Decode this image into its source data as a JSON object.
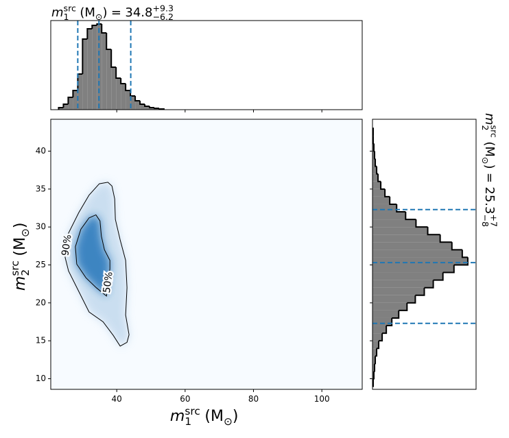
{
  "chart_data": [
    {
      "type": "histogram",
      "orientation": "vertical",
      "title": {
        "symbol": "m",
        "sup": "src",
        "sub": "1",
        "unit_open": "(M",
        "unit_sub": "⊙",
        "unit_close": ")",
        "equals": "=",
        "value": 34.8,
        "plus": {
          "value": 9.3,
          "label": "+9.3"
        },
        "minus": {
          "value": -6.2,
          "label": "−6.2"
        }
      },
      "bins": [
        23.0,
        24.4,
        25.8,
        27.2,
        28.6,
        30.0,
        31.4,
        32.8,
        34.2,
        35.6,
        37.0,
        38.4,
        39.8,
        41.2,
        42.6,
        44.0,
        45.4,
        46.8,
        48.2,
        49.6,
        51.0,
        52.4,
        53.8
      ],
      "counts": [
        3,
        8,
        18,
        28,
        52,
        103,
        118,
        123,
        125,
        112,
        88,
        62,
        46,
        38,
        28,
        20,
        13,
        8,
        5,
        3,
        2,
        1
      ],
      "color": "#808080",
      "edge_color": "#000000",
      "xlim": [
        20.7,
        111.8
      ],
      "ylim": [
        0,
        130
      ],
      "xticks": [
        40,
        60,
        80,
        100
      ],
      "quantiles": [
        28.6,
        34.8,
        44.1
      ],
      "quantile_color": "#1f77b4"
    },
    {
      "type": "contour",
      "xlabel": {
        "symbol": "m",
        "sup": "src",
        "sub": "1",
        "unit_open": "(M",
        "unit_sub": "⊙",
        "unit_close": ")"
      },
      "ylabel": {
        "symbol": "m",
        "sup": "src",
        "sub": "2",
        "unit_open": "(M",
        "unit_sub": "⊙",
        "unit_close": ")"
      },
      "xlim": [
        20.7,
        111.8
      ],
      "ylim": [
        8.6,
        44.2
      ],
      "xticks": [
        40,
        60,
        80,
        100
      ],
      "yticks": [
        10,
        15,
        20,
        25,
        30,
        35,
        40
      ],
      "background": "#f7fbff",
      "contours": [
        {
          "label": "90%",
          "fill": "#c6dbef",
          "x": [
            37.4,
            38.6,
            39.4,
            39.6,
            41.0,
            42.6,
            43.0,
            42.6,
            43.6,
            43.0,
            41.0,
            39.0,
            36.0,
            31.9,
            28.9,
            25.9,
            24.9,
            25.9,
            28.9,
            31.9,
            34.9
          ],
          "y": [
            35.9,
            35.4,
            33.7,
            31.0,
            28.3,
            25.6,
            22.0,
            18.4,
            15.8,
            14.8,
            14.3,
            15.7,
            17.5,
            18.8,
            21.5,
            24.2,
            26.0,
            29.2,
            31.9,
            34.2,
            35.7
          ]
        },
        {
          "label": "50%",
          "fill": "#2f7bbd",
          "x": [
            33.9,
            35.1,
            35.5,
            36.4,
            38.0,
            38.0,
            37.0,
            34.0,
            31.0,
            28.3,
            27.9,
            29.5,
            31.9
          ],
          "y": [
            31.6,
            30.8,
            28.8,
            27.0,
            25.6,
            24.5,
            20.9,
            22.0,
            23.3,
            25.1,
            27.4,
            29.7,
            31.2
          ]
        }
      ]
    },
    {
      "type": "histogram",
      "orientation": "horizontal",
      "title": {
        "symbol": "m",
        "sup": "src",
        "sub": "2",
        "unit_open": "(M",
        "unit_sub": "⊙",
        "unit_close": ")",
        "equals": "=",
        "value": 25.3,
        "plus": {
          "value": 7,
          "label": "+7"
        },
        "minus": {
          "value": -8,
          "label": "−8"
        }
      },
      "bins": [
        9,
        10,
        11,
        12,
        13,
        14,
        15,
        16,
        17,
        18,
        19,
        20,
        21,
        22,
        23,
        24,
        25,
        26,
        27,
        28,
        29,
        30,
        31,
        32,
        33,
        34,
        35,
        36,
        37,
        38,
        39,
        40,
        41,
        42,
        43
      ],
      "counts": [
        1,
        2,
        3,
        4,
        6,
        9,
        14,
        20,
        28,
        38,
        50,
        62,
        75,
        88,
        102,
        118,
        138,
        130,
        115,
        98,
        80,
        63,
        48,
        35,
        25,
        18,
        12,
        8,
        6,
        4,
        3,
        2,
        1,
        1
      ],
      "color": "#808080",
      "edge_color": "#000000",
      "xlim": [
        0,
        150
      ],
      "ylim": [
        8.6,
        44.2
      ],
      "yticks": [
        10,
        15,
        20,
        25,
        30,
        35,
        40
      ],
      "quantiles": [
        17.3,
        25.3,
        32.3
      ],
      "quantile_color": "#1f77b4"
    }
  ]
}
